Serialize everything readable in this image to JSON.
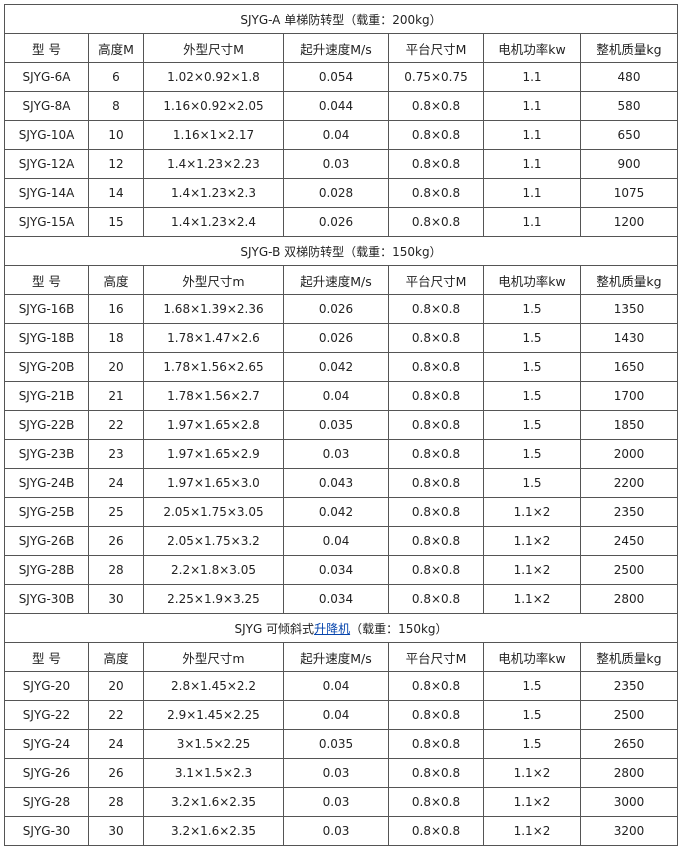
{
  "columns": [
    "型 号",
    "高度M",
    "外型尺寸M",
    "起升速度M/s",
    "平台尺寸M",
    "电机功率kw",
    "整机质量kg"
  ],
  "sections": [
    {
      "title_before": "SJYG-A 单梯防转型（载重：200kg）",
      "title_link": "",
      "title_after": "",
      "headers": [
        "型 号",
        "高度M",
        "外型尺寸M",
        "起升速度M/s",
        "平台尺寸M",
        "电机功率kw",
        "整机质量kg"
      ],
      "rows": [
        [
          "SJYG-6A",
          "6",
          "1.02×0.92×1.8",
          "0.054",
          "0.75×0.75",
          "1.1",
          "480"
        ],
        [
          "SJYG-8A",
          "8",
          "1.16×0.92×2.05",
          "0.044",
          "0.8×0.8",
          "1.1",
          "580"
        ],
        [
          "SJYG-10A",
          "10",
          "1.16×1×2.17",
          "0.04",
          "0.8×0.8",
          "1.1",
          "650"
        ],
        [
          "SJYG-12A",
          "12",
          "1.4×1.23×2.23",
          "0.03",
          "0.8×0.8",
          "1.1",
          "900"
        ],
        [
          "SJYG-14A",
          "14",
          "1.4×1.23×2.3",
          "0.028",
          "0.8×0.8",
          "1.1",
          "1075"
        ],
        [
          "SJYG-15A",
          "15",
          "1.4×1.23×2.4",
          "0.026",
          "0.8×0.8",
          "1.1",
          "1200"
        ]
      ]
    },
    {
      "title_before": "SJYG-B 双梯防转型（载重：150kg）",
      "title_link": "",
      "title_after": "",
      "headers": [
        "型 号",
        "高度",
        "外型尺寸m",
        "起升速度M/s",
        "平台尺寸M",
        "电机功率kw",
        "整机质量kg"
      ],
      "rows": [
        [
          "SJYG-16B",
          "16",
          "1.68×1.39×2.36",
          "0.026",
          "0.8×0.8",
          "1.5",
          "1350"
        ],
        [
          "SJYG-18B",
          "18",
          "1.78×1.47×2.6",
          "0.026",
          "0.8×0.8",
          "1.5",
          "1430"
        ],
        [
          "SJYG-20B",
          "20",
          "1.78×1.56×2.65",
          "0.042",
          "0.8×0.8",
          "1.5",
          "1650"
        ],
        [
          "SJYG-21B",
          "21",
          "1.78×1.56×2.7",
          "0.04",
          "0.8×0.8",
          "1.5",
          "1700"
        ],
        [
          "SJYG-22B",
          "22",
          "1.97×1.65×2.8",
          "0.035",
          "0.8×0.8",
          "1.5",
          "1850"
        ],
        [
          "SJYG-23B",
          "23",
          "1.97×1.65×2.9",
          "0.03",
          "0.8×0.8",
          "1.5",
          "2000"
        ],
        [
          "SJYG-24B",
          "24",
          "1.97×1.65×3.0",
          "0.043",
          "0.8×0.8",
          "1.5",
          "2200"
        ],
        [
          "SJYG-25B",
          "25",
          "2.05×1.75×3.05",
          "0.042",
          "0.8×0.8",
          "1.1×2",
          "2350"
        ],
        [
          "SJYG-26B",
          "26",
          "2.05×1.75×3.2",
          "0.04",
          "0.8×0.8",
          "1.1×2",
          "2450"
        ],
        [
          "SJYG-28B",
          "28",
          "2.2×1.8×3.05",
          "0.034",
          "0.8×0.8",
          "1.1×2",
          "2500"
        ],
        [
          "SJYG-30B",
          "30",
          "2.25×1.9×3.25",
          "0.034",
          "0.8×0.8",
          "1.1×2",
          "2800"
        ]
      ]
    },
    {
      "title_before": "SJYG 可倾斜式",
      "title_link": "升降机",
      "title_after": "（载重：150kg）",
      "headers": [
        "型 号",
        "高度",
        "外型尺寸m",
        "起升速度M/s",
        "平台尺寸M",
        "电机功率kw",
        "整机质量kg"
      ],
      "rows": [
        [
          "SJYG-20",
          "20",
          "2.8×1.45×2.2",
          "0.04",
          "0.8×0.8",
          "1.5",
          "2350"
        ],
        [
          "SJYG-22",
          "22",
          "2.9×1.45×2.25",
          "0.04",
          "0.8×0.8",
          "1.5",
          "2500"
        ],
        [
          "SJYG-24",
          "24",
          "3×1.5×2.25",
          "0.035",
          "0.8×0.8",
          "1.5",
          "2650"
        ],
        [
          "SJYG-26",
          "26",
          "3.1×1.5×2.3",
          "0.03",
          "0.8×0.8",
          "1.1×2",
          "2800"
        ],
        [
          "SJYG-28",
          "28",
          "3.2×1.6×2.35",
          "0.03",
          "0.8×0.8",
          "1.1×2",
          "3000"
        ],
        [
          "SJYG-30",
          "30",
          "3.2×1.6×2.35",
          "0.03",
          "0.8×0.8",
          "1.1×2",
          "3200"
        ]
      ]
    }
  ]
}
